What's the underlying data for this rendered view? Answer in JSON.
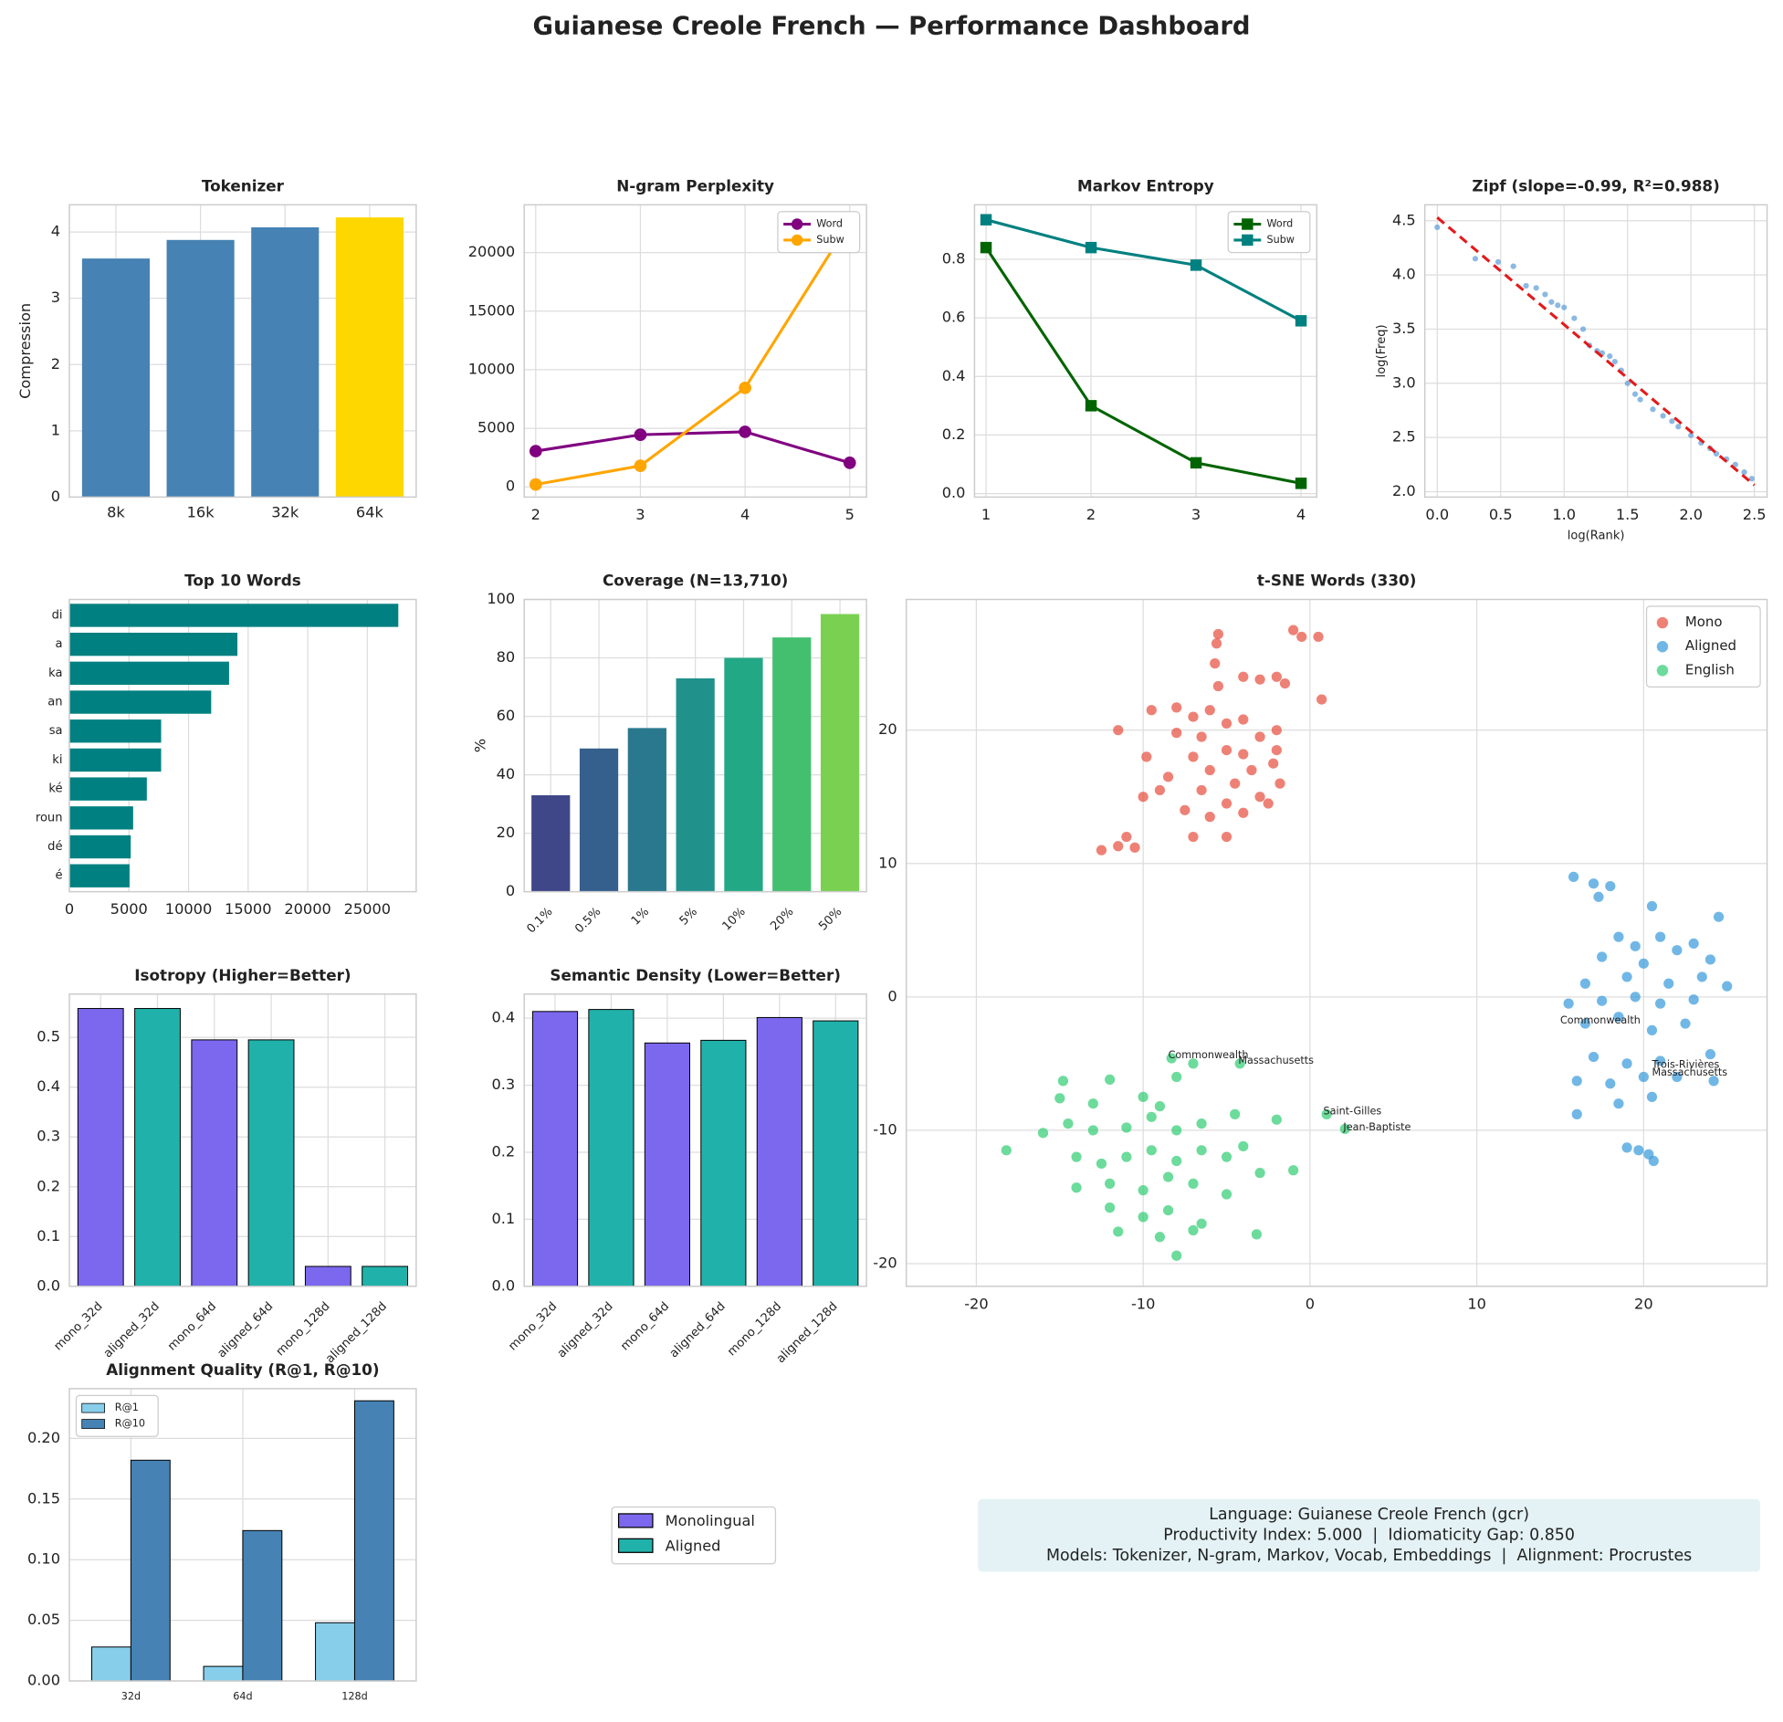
{
  "title": "Guianese Creole French — Performance Dashboard",
  "info": [
    "Language: Guianese Creole French (gcr)",
    "Productivity Index: 5.000  |  Idiomaticity Gap: 0.850",
    "Models: Tokenizer, N-gram, Markov, Vocab, Embeddings  |  Alignment: Procrustes"
  ],
  "shared_legend": [
    {
      "name": "Monolingual",
      "color": "#7b68ee"
    },
    {
      "name": "Aligned",
      "color": "#20b2aa"
    }
  ],
  "chart_data": [
    {
      "type": "bar",
      "title": "Tokenizer",
      "ylabel": "Compression",
      "categories": [
        "8k",
        "16k",
        "32k",
        "64k"
      ],
      "values": [
        3.6,
        3.88,
        4.07,
        4.22
      ],
      "colors": [
        "#4682b4",
        "#4682b4",
        "#4682b4",
        "#ffd700"
      ],
      "ylim": [
        0,
        4.41
      ],
      "yticks": [
        0,
        1,
        2,
        3,
        4
      ],
      "grid": true
    },
    {
      "type": "line",
      "title": "N-gram Perplexity",
      "x": [
        2,
        3,
        4,
        5
      ],
      "xlim": [
        1.89,
        5.16
      ],
      "xticks": [
        2,
        3,
        4,
        5
      ],
      "ylim": [
        -875,
        24080
      ],
      "yticks": [
        0,
        5000,
        10000,
        15000,
        20000
      ],
      "grid": true,
      "legend": "upper right",
      "series": [
        {
          "name": "Word",
          "color": "#800080",
          "marker": "o",
          "values": [
            3050,
            4450,
            4700,
            2050
          ]
        },
        {
          "name": "Subw",
          "color": "#ffa500",
          "marker": "o",
          "values": [
            200,
            1800,
            8450,
            22600
          ]
        }
      ]
    },
    {
      "type": "line",
      "title": "Markov Entropy",
      "x": [
        1,
        2,
        3,
        4
      ],
      "xlim": [
        0.89,
        4.15
      ],
      "xticks": [
        1,
        2,
        3,
        4
      ],
      "ylim": [
        -0.012,
        0.986
      ],
      "yticks": [
        {
          "value": 0,
          "label": "0.0"
        },
        0.2,
        0.4,
        0.6,
        0.8
      ],
      "grid": true,
      "legend": "upper right",
      "series": [
        {
          "name": "Word",
          "color": "#006400",
          "marker": "s",
          "values": [
            0.84,
            0.3,
            0.105,
            0.035
          ]
        },
        {
          "name": "Subw",
          "color": "#008080",
          "marker": "s",
          "values": [
            0.935,
            0.84,
            0.78,
            0.59
          ]
        }
      ]
    },
    {
      "type": "scatter",
      "title": "Zipf (slope=-0.99, R²=0.988)",
      "xlabel": "log(Rank)",
      "ylabel": "log(Freq)",
      "color": "#5b9bd5",
      "x": [
        0,
        0.3,
        0.48,
        0.6,
        0.7,
        0.78,
        0.85,
        0.9,
        0.95,
        1.0,
        1.08,
        1.15,
        1.2,
        1.26,
        1.3,
        1.36,
        1.4,
        1.45,
        1.5,
        1.56,
        1.6,
        1.7,
        1.78,
        1.85,
        1.9,
        2.0,
        2.08,
        2.15,
        2.2,
        2.28,
        2.35,
        2.42,
        2.48
      ],
      "values": [
        4.44,
        4.15,
        4.12,
        4.08,
        3.9,
        3.88,
        3.82,
        3.75,
        3.72,
        3.7,
        3.6,
        3.5,
        3.35,
        3.3,
        3.28,
        3.25,
        3.2,
        3.12,
        3.0,
        2.9,
        2.85,
        2.76,
        2.7,
        2.65,
        2.6,
        2.52,
        2.45,
        2.4,
        2.35,
        2.3,
        2.25,
        2.18,
        2.12
      ],
      "fit": {
        "x": [
          0,
          2.5
        ],
        "values": [
          4.53,
          2.06
        ],
        "color": "#e31a1c"
      },
      "xlim": [
        -0.098,
        2.6
      ],
      "xticks": [
        {
          "value": 0,
          "label": "0.0"
        },
        0.5,
        {
          "value": 1,
          "label": "1.0"
        },
        1.5,
        {
          "value": 2,
          "label": "2.0"
        },
        2.5
      ],
      "ylim": [
        1.95,
        4.647
      ],
      "yticks": [
        {
          "value": 2,
          "label": "2.0"
        },
        2.5,
        {
          "value": 3,
          "label": "3.0"
        },
        3.5,
        {
          "value": 4,
          "label": "4.0"
        },
        4.5
      ],
      "grid": true
    },
    {
      "type": "barh",
      "title": "Top 10 Words",
      "categories": [
        "di",
        "a",
        "ka",
        "an",
        "sa",
        "ki",
        "ké",
        "roun",
        "dé",
        "é"
      ],
      "values": [
        27600,
        14100,
        13400,
        11900,
        7700,
        7700,
        6500,
        5350,
        5150,
        5050
      ],
      "color": "#008080",
      "xlim": [
        0,
        29100
      ],
      "xticks": [
        0,
        5000,
        10000,
        15000,
        20000,
        25000
      ],
      "grid": true
    },
    {
      "type": "bar",
      "title": "Coverage (N=13,710)",
      "ylabel": "%",
      "categories": [
        "0.1%",
        "0.5%",
        "1%",
        "5%",
        "10%",
        "20%",
        "50%"
      ],
      "values": [
        33,
        49,
        56,
        73,
        80,
        87,
        95
      ],
      "colors": [
        "#3f4788",
        "#355f8d",
        "#2a788e",
        "#21918c",
        "#22a884",
        "#44bf70",
        "#7ad151"
      ],
      "ylim": [
        0,
        100
      ],
      "yticks": [
        0,
        20,
        40,
        60,
        80,
        100
      ],
      "grid": true,
      "xtick_rotation": 45
    },
    {
      "type": "scatter",
      "title": "t-SNE Words (330)",
      "xlim": [
        -24.2,
        27.4
      ],
      "xticks": [
        -20,
        -10,
        0,
        10,
        20
      ],
      "ylim": [
        -21.7,
        29.8
      ],
      "yticks": [
        -20,
        -10,
        0,
        10,
        20
      ],
      "grid": true,
      "legend": "upper right",
      "series": [
        {
          "name": "Mono",
          "color": "#e74c3c",
          "x": [
            -1,
            -0.5,
            0.5,
            -5.5,
            -5.6,
            -5.7,
            -2,
            -1.5,
            -3,
            -4,
            -5.5,
            0.7,
            -9.5,
            -8,
            -7,
            -6,
            -5,
            -4,
            -3,
            -2,
            -11.5,
            -9.8,
            -8,
            -6.5,
            -5,
            -7,
            -4,
            -3.5,
            -2,
            -8.5,
            -6,
            -4.5,
            -6.5,
            -10,
            -7.5,
            -5,
            -3,
            -2.5,
            -6,
            -4,
            -7,
            -5,
            -11,
            -12.5,
            -11.5,
            -10.5,
            -9,
            -1.8,
            -2.2
          ],
          "values": [
            27.5,
            27,
            27,
            27.2,
            26.5,
            25,
            24,
            23.5,
            23.8,
            24,
            23.3,
            22.3,
            21.5,
            21.7,
            21,
            21.5,
            20.5,
            20.8,
            19.5,
            20,
            20,
            18,
            19.8,
            19.5,
            18.5,
            18,
            18.2,
            17,
            18.5,
            16.5,
            17,
            16,
            15.5,
            15,
            14,
            14.5,
            15,
            14.5,
            13.5,
            13.8,
            12,
            12,
            12,
            11,
            11.3,
            11.2,
            15.5,
            16,
            17.5
          ]
        },
        {
          "name": "Aligned",
          "color": "#3498db",
          "x": [
            15.8,
            17,
            18,
            17.3,
            20.5,
            24.5,
            18.5,
            19.5,
            21,
            23,
            17.5,
            20,
            22,
            24,
            16.5,
            19,
            21.5,
            23.5,
            25,
            15.5,
            17.5,
            19.5,
            21,
            23,
            16.5,
            18.5,
            20.5,
            22.5,
            17,
            19,
            21,
            24,
            16,
            18,
            20,
            22,
            24.2,
            16,
            18.5,
            20.5,
            19,
            20.3,
            20.6,
            19.7
          ],
          "values": [
            9,
            8.5,
            8.3,
            7.5,
            6.8,
            6,
            4.5,
            3.8,
            4.5,
            4,
            3,
            2.5,
            3.5,
            2.8,
            1,
            1.5,
            1,
            1.5,
            0.8,
            -0.5,
            -0.3,
            0,
            -0.5,
            -0.2,
            -2,
            -1.5,
            -2.5,
            -2,
            -4.5,
            -5,
            -4.8,
            -4.3,
            -6.3,
            -6.5,
            -6,
            -6,
            -6.3,
            -8.8,
            -8,
            -7.5,
            -11.3,
            -11.8,
            -12.3,
            -11.5
          ]
        },
        {
          "name": "English",
          "color": "#2ecc71",
          "x": [
            -18.2,
            -16,
            -14.8,
            -15,
            -13,
            -12,
            -10,
            -9,
            -8,
            -7,
            -8.3,
            -4.2,
            -14.5,
            -13,
            -11,
            -9.5,
            -8,
            -6.5,
            -4.5,
            -14,
            -12.5,
            -11,
            -9.5,
            -8,
            -6.5,
            -5,
            -4,
            -14,
            -12,
            -10,
            -8.5,
            -7,
            -5,
            -3,
            -1,
            -12,
            -10,
            -8.5,
            -6.5,
            -11.5,
            -9,
            -7,
            -8,
            -2,
            1,
            2.1,
            -3.2
          ],
          "values": [
            -11.5,
            -10.2,
            -6.3,
            -7.6,
            -8,
            -6.2,
            -7.5,
            -8.2,
            -6,
            -5,
            -4.6,
            -5,
            -9.5,
            -10,
            -9.8,
            -9,
            -10,
            -9.5,
            -8.8,
            -12,
            -12.5,
            -12,
            -11.5,
            -12.3,
            -11.5,
            -12,
            -11.2,
            -14.3,
            -14,
            -14.5,
            -13.5,
            -14,
            -14.8,
            -13.2,
            -13,
            -15.8,
            -16.5,
            -16,
            -17,
            -17.6,
            -18,
            -17.5,
            -19.4,
            -9.2,
            -8.8,
            -9.9,
            -17.8
          ]
        }
      ],
      "annotations": [
        {
          "text": "Commonwealth",
          "x": -8.5,
          "y": -4.4,
          "color": "#2ecc71"
        },
        {
          "text": "Massachusetts",
          "x": -4.3,
          "y": -4.8,
          "color": "#2ecc71"
        },
        {
          "text": "Saint-Gilles",
          "x": 0.8,
          "y": -8.6,
          "color": "#2ecc71"
        },
        {
          "text": "Jean-Baptiste",
          "x": 2,
          "y": -9.8,
          "color": "#2ecc71"
        },
        {
          "text": "Commonwealth",
          "x": 15,
          "y": -1.8,
          "color": "#3498db"
        },
        {
          "text": "Trois-Rivières",
          "x": 20.5,
          "y": -5.1,
          "color": "#3498db"
        },
        {
          "text": "Massachusetts",
          "x": 20.5,
          "y": -5.7,
          "color": "#3498db"
        }
      ]
    },
    {
      "type": "bar",
      "title": "Isotropy (Higher=Better)",
      "categories": [
        "mono_32d",
        "aligned_32d",
        "mono_64d",
        "aligned_64d",
        "mono_128d",
        "aligned_128d"
      ],
      "values": [
        0.558,
        0.558,
        0.495,
        0.495,
        0.04,
        0.04
      ],
      "colors": [
        "#7b68ee",
        "#20b2aa",
        "#7b68ee",
        "#20b2aa",
        "#7b68ee",
        "#20b2aa"
      ],
      "edgecolor": "#000",
      "ylim": [
        0,
        0.587
      ],
      "yticks": [
        {
          "value": 0,
          "label": "0.0"
        },
        0.1,
        0.2,
        0.3,
        0.4,
        0.5
      ],
      "grid": true,
      "xtick_rotation": 45
    },
    {
      "type": "bar",
      "title": "Semantic Density (Lower=Better)",
      "categories": [
        "mono_32d",
        "aligned_32d",
        "mono_64d",
        "aligned_64d",
        "mono_128d",
        "aligned_128d"
      ],
      "values": [
        0.41,
        0.413,
        0.363,
        0.367,
        0.401,
        0.396
      ],
      "colors": [
        "#7b68ee",
        "#20b2aa",
        "#7b68ee",
        "#20b2aa",
        "#7b68ee",
        "#20b2aa"
      ],
      "edgecolor": "#000",
      "ylim": [
        0,
        0.436
      ],
      "yticks": [
        {
          "value": 0,
          "label": "0.0"
        },
        0.1,
        0.2,
        0.3,
        0.4
      ],
      "grid": true,
      "xtick_rotation": 45
    },
    {
      "type": "grouped_bar",
      "title": "Alignment Quality (R@1, R@10)",
      "categories": [
        "32d",
        "64d",
        "128d"
      ],
      "edgecolor": "#000",
      "legend": "upper left",
      "series": [
        {
          "name": "R@1",
          "color": "#87ceeb",
          "values": [
            0.028,
            0.012,
            0.048
          ]
        },
        {
          "name": "R@10",
          "color": "#4682b4",
          "values": [
            0.182,
            0.124,
            0.231
          ]
        }
      ],
      "ylim": [
        0,
        0.241
      ],
      "yticks": [
        {
          "value": 0,
          "label": "0.00"
        },
        {
          "value": 0.05,
          "label": "0.05"
        },
        {
          "value": 0.1,
          "label": "0.10"
        },
        {
          "value": 0.15,
          "label": "0.15"
        },
        {
          "value": 0.2,
          "label": "0.20"
        }
      ],
      "grid": true
    }
  ]
}
